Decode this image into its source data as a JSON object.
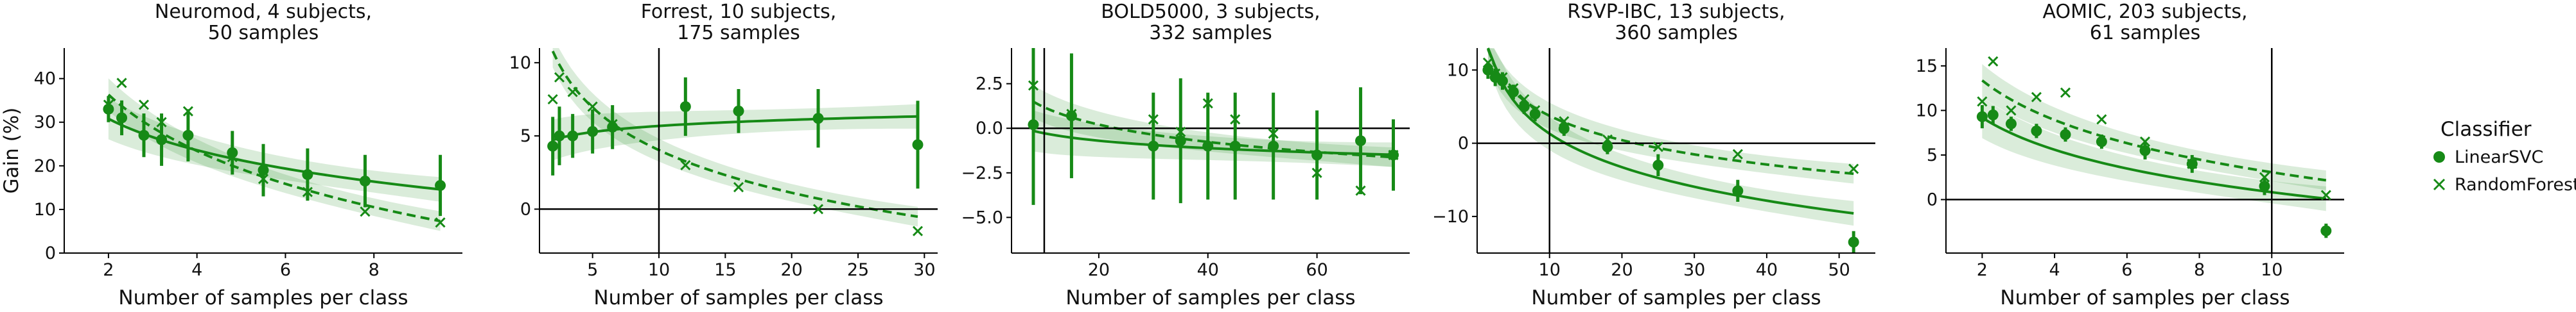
{
  "figure": {
    "legend": {
      "title": "Classifier",
      "placement": "right",
      "entries": [
        {
          "name": "LinearSVC",
          "marker": "circle",
          "line": "solid"
        },
        {
          "name": "RandomForest",
          "marker": "x",
          "line": "dashed"
        }
      ],
      "color": "#168a16"
    }
  },
  "chart_data": [
    {
      "type": "scatter",
      "title": "Neuromod, 4 subjects,\n50 samples",
      "xlabel": "Number of samples per class",
      "ylabel": "Gain (%)",
      "xlim": [
        1,
        10
      ],
      "ylim": [
        0,
        47
      ],
      "xticks": [
        2,
        4,
        6,
        8
      ],
      "yticks": [
        0,
        10,
        20,
        30,
        40
      ],
      "vline": null,
      "hline": 0,
      "fits": {
        "LinearSVC": {
          "fn": "log",
          "a": 38.0,
          "b": 10.4
        },
        "RandomForest": {
          "fn": "log",
          "a": 49.2,
          "b": 18.6
        }
      },
      "series": [
        {
          "name": "LinearSVC",
          "marker": "circle",
          "points": [
            {
              "x": 2.0,
              "y": 33.0,
              "err": 3
            },
            {
              "x": 2.3,
              "y": 31.0,
              "err": 4
            },
            {
              "x": 2.8,
              "y": 27.0,
              "err": 5
            },
            {
              "x": 3.2,
              "y": 26.0,
              "err": 6
            },
            {
              "x": 3.8,
              "y": 27.0,
              "err": 6
            },
            {
              "x": 4.8,
              "y": 23.0,
              "err": 5
            },
            {
              "x": 5.5,
              "y": 19.0,
              "err": 6
            },
            {
              "x": 6.5,
              "y": 18.0,
              "err": 6
            },
            {
              "x": 7.8,
              "y": 16.5,
              "err": 6
            },
            {
              "x": 9.5,
              "y": 15.5,
              "err": 7
            }
          ]
        },
        {
          "name": "RandomForest",
          "marker": "x",
          "points": [
            {
              "x": 2.0,
              "y": 34.0
            },
            {
              "x": 2.3,
              "y": 39.0
            },
            {
              "x": 2.8,
              "y": 34.0
            },
            {
              "x": 3.2,
              "y": 30.0
            },
            {
              "x": 3.8,
              "y": 32.5
            },
            {
              "x": 4.8,
              "y": 22.0
            },
            {
              "x": 5.5,
              "y": 17.0
            },
            {
              "x": 6.5,
              "y": 14.0
            },
            {
              "x": 7.8,
              "y": 9.5
            },
            {
              "x": 9.5,
              "y": 7.0
            }
          ]
        }
      ]
    },
    {
      "type": "scatter",
      "title": "Forrest, 10 subjects,\n175 samples",
      "xlabel": "Number of samples per class",
      "ylabel": "",
      "xlim": [
        1,
        31
      ],
      "ylim": [
        -3,
        11
      ],
      "xticks": [
        5,
        10,
        15,
        20,
        25,
        30
      ],
      "yticks": [
        0,
        5,
        10
      ],
      "vline": 10,
      "hline": 0,
      "fits": {
        "LinearSVC": {
          "fn": "log",
          "a": 4.3,
          "b": -0.6
        },
        "RandomForest": {
          "fn": "log",
          "a": 13.7,
          "b": 4.2
        }
      },
      "series": [
        {
          "name": "LinearSVC",
          "marker": "circle",
          "points": [
            {
              "x": 2.0,
              "y": 4.3,
              "err": 2.0
            },
            {
              "x": 2.5,
              "y": 5.0,
              "err": 2.0
            },
            {
              "x": 3.5,
              "y": 5.0,
              "err": 1.5
            },
            {
              "x": 5.0,
              "y": 5.3,
              "err": 1.5
            },
            {
              "x": 6.5,
              "y": 5.6,
              "err": 1.5
            },
            {
              "x": 12.0,
              "y": 7.0,
              "err": 2.0
            },
            {
              "x": 16.0,
              "y": 6.7,
              "err": 1.5
            },
            {
              "x": 22.0,
              "y": 6.2,
              "err": 2.0
            },
            {
              "x": 29.5,
              "y": 4.4,
              "err": 3.0
            }
          ]
        },
        {
          "name": "RandomForest",
          "marker": "x",
          "points": [
            {
              "x": 2.0,
              "y": 7.5
            },
            {
              "x": 2.5,
              "y": 9.0
            },
            {
              "x": 3.5,
              "y": 8.0
            },
            {
              "x": 5.0,
              "y": 7.0
            },
            {
              "x": 6.5,
              "y": 5.8
            },
            {
              "x": 12.0,
              "y": 3.0
            },
            {
              "x": 16.0,
              "y": 1.5
            },
            {
              "x": 22.0,
              "y": 0.0
            },
            {
              "x": 29.5,
              "y": -1.5
            }
          ]
        }
      ]
    },
    {
      "type": "scatter",
      "title": "BOLD5000, 3 subjects,\n332 samples",
      "xlabel": "Number of samples per class",
      "ylabel": "",
      "xlim": [
        4,
        77
      ],
      "ylim": [
        -7,
        4.5
      ],
      "xticks": [
        20,
        40,
        60
      ],
      "yticks": [
        -5.0,
        -2.5,
        0.0,
        2.5
      ],
      "ytickfmt": 1,
      "vline": 10,
      "hline": 0,
      "fits": {
        "LinearSVC": {
          "fn": "log",
          "a": 1.1,
          "b": 0.6
        },
        "RandomForest": {
          "fn": "log",
          "a": 4.4,
          "b": 1.4
        }
      },
      "series": [
        {
          "name": "LinearSVC",
          "marker": "circle",
          "points": [
            {
              "x": 8,
              "y": 0.2,
              "err": 4.5
            },
            {
              "x": 15,
              "y": 0.7,
              "err": 3.5
            },
            {
              "x": 30,
              "y": -1.0,
              "err": 3.0
            },
            {
              "x": 35,
              "y": -0.7,
              "err": 3.5
            },
            {
              "x": 40,
              "y": -1.0,
              "err": 3.0
            },
            {
              "x": 45,
              "y": -1.0,
              "err": 3.0
            },
            {
              "x": 52,
              "y": -1.0,
              "err": 3.0
            },
            {
              "x": 60,
              "y": -1.5,
              "err": 2.5
            },
            {
              "x": 68,
              "y": -0.7,
              "err": 3.0
            },
            {
              "x": 74,
              "y": -1.5,
              "err": 2.0
            }
          ]
        },
        {
          "name": "RandomForest",
          "marker": "x",
          "points": [
            {
              "x": 8,
              "y": 2.4
            },
            {
              "x": 15,
              "y": 0.8
            },
            {
              "x": 30,
              "y": 0.5
            },
            {
              "x": 35,
              "y": -0.2
            },
            {
              "x": 40,
              "y": 1.4
            },
            {
              "x": 45,
              "y": 0.5
            },
            {
              "x": 52,
              "y": -0.3
            },
            {
              "x": 60,
              "y": -2.5
            },
            {
              "x": 68,
              "y": -3.5
            },
            {
              "x": 74,
              "y": -1.5
            }
          ]
        }
      ]
    },
    {
      "type": "scatter",
      "title": "RSVP-IBC, 13 subjects,\n360 samples",
      "xlabel": "Number of samples per class",
      "ylabel": "",
      "xlim": [
        0,
        55
      ],
      "ylim": [
        -15,
        13
      ],
      "xticks": [
        10,
        20,
        30,
        40,
        50
      ],
      "yticks": [
        -10,
        0,
        10
      ],
      "vline": 10,
      "hline": 0,
      "fits": {
        "LinearSVC": {
          "fn": "log",
          "a": 16.5,
          "b": 6.6
        },
        "RandomForest": {
          "fn": "log",
          "a": 14.8,
          "b": 4.8
        }
      },
      "series": [
        {
          "name": "LinearSVC",
          "marker": "circle",
          "points": [
            {
              "x": 1.5,
              "y": 10.0,
              "err": 1.2
            },
            {
              "x": 2.5,
              "y": 9.0,
              "err": 1.2
            },
            {
              "x": 3.5,
              "y": 8.5,
              "err": 1.2
            },
            {
              "x": 5.0,
              "y": 7.0,
              "err": 1.0
            },
            {
              "x": 6.5,
              "y": 5.0,
              "err": 1.0
            },
            {
              "x": 8.0,
              "y": 4.0,
              "err": 1.0
            },
            {
              "x": 12.0,
              "y": 2.0,
              "err": 1.0
            },
            {
              "x": 18.0,
              "y": -0.5,
              "err": 1.0
            },
            {
              "x": 25.0,
              "y": -3.0,
              "err": 1.5
            },
            {
              "x": 36.0,
              "y": -6.5,
              "err": 1.5
            },
            {
              "x": 52.0,
              "y": -13.5,
              "err": 1.5
            }
          ]
        },
        {
          "name": "RandomForest",
          "marker": "x",
          "points": [
            {
              "x": 1.5,
              "y": 11.0
            },
            {
              "x": 2.5,
              "y": 9.5
            },
            {
              "x": 3.5,
              "y": 9.0
            },
            {
              "x": 5.0,
              "y": 7.5
            },
            {
              "x": 6.5,
              "y": 6.0
            },
            {
              "x": 8.0,
              "y": 4.5
            },
            {
              "x": 12.0,
              "y": 3.0
            },
            {
              "x": 18.0,
              "y": 0.5
            },
            {
              "x": 25.0,
              "y": -0.5
            },
            {
              "x": 36.0,
              "y": -1.5
            },
            {
              "x": 52.0,
              "y": -3.5
            }
          ]
        }
      ]
    },
    {
      "type": "scatter",
      "title": "AOMIC, 203 subjects,\n61 samples",
      "xlabel": "Number of samples per class",
      "ylabel": "",
      "xlim": [
        1,
        12
      ],
      "ylim": [
        -6,
        17
      ],
      "xticks": [
        2,
        4,
        6,
        8,
        10
      ],
      "yticks": [
        0,
        5,
        10,
        15
      ],
      "vline": 10,
      "hline": 0,
      "fits": {
        "LinearSVC": {
          "fn": "log",
          "a": 12.8,
          "b": 5.2
        },
        "RandomForest": {
          "fn": "log",
          "a": 17.8,
          "b": 6.4
        }
      },
      "series": [
        {
          "name": "LinearSVC",
          "marker": "circle",
          "points": [
            {
              "x": 2.0,
              "y": 9.3,
              "err": 1.3
            },
            {
              "x": 2.3,
              "y": 9.5,
              "err": 1.0
            },
            {
              "x": 2.8,
              "y": 8.5,
              "err": 0.8
            },
            {
              "x": 3.5,
              "y": 7.7,
              "err": 0.8
            },
            {
              "x": 4.3,
              "y": 7.3,
              "err": 0.8
            },
            {
              "x": 5.3,
              "y": 6.5,
              "err": 0.8
            },
            {
              "x": 6.5,
              "y": 5.5,
              "err": 1.0
            },
            {
              "x": 7.8,
              "y": 4.0,
              "err": 1.0
            },
            {
              "x": 9.8,
              "y": 1.5,
              "err": 1.0
            },
            {
              "x": 11.5,
              "y": -3.5,
              "err": 0.8
            }
          ]
        },
        {
          "name": "RandomForest",
          "marker": "x",
          "points": [
            {
              "x": 2.0,
              "y": 11.0
            },
            {
              "x": 2.3,
              "y": 15.5
            },
            {
              "x": 2.8,
              "y": 10.0
            },
            {
              "x": 3.5,
              "y": 11.5
            },
            {
              "x": 4.3,
              "y": 12.0
            },
            {
              "x": 5.3,
              "y": 9.0
            },
            {
              "x": 6.5,
              "y": 6.5
            },
            {
              "x": 7.8,
              "y": 4.0
            },
            {
              "x": 9.8,
              "y": 2.5
            },
            {
              "x": 11.5,
              "y": 0.5
            }
          ]
        }
      ]
    }
  ]
}
